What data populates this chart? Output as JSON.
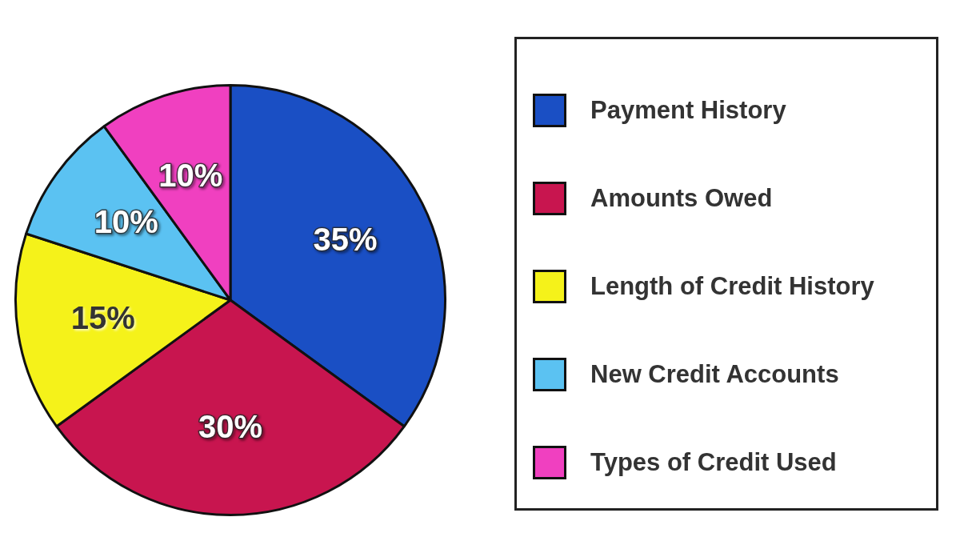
{
  "chart_data": {
    "type": "pie",
    "categories": [
      "Payment History",
      "Amounts Owed",
      "Length of Credit History",
      "New Credit Accounts",
      "Types of Credit Used"
    ],
    "values": [
      35,
      30,
      15,
      10,
      10
    ],
    "colors": [
      "#1a4fc4",
      "#c8154f",
      "#f5f21a",
      "#5bc2f2",
      "#f040c0"
    ],
    "value_labels": [
      "35%",
      "30%",
      "15%",
      "10%",
      "10%"
    ],
    "legend": "right"
  }
}
